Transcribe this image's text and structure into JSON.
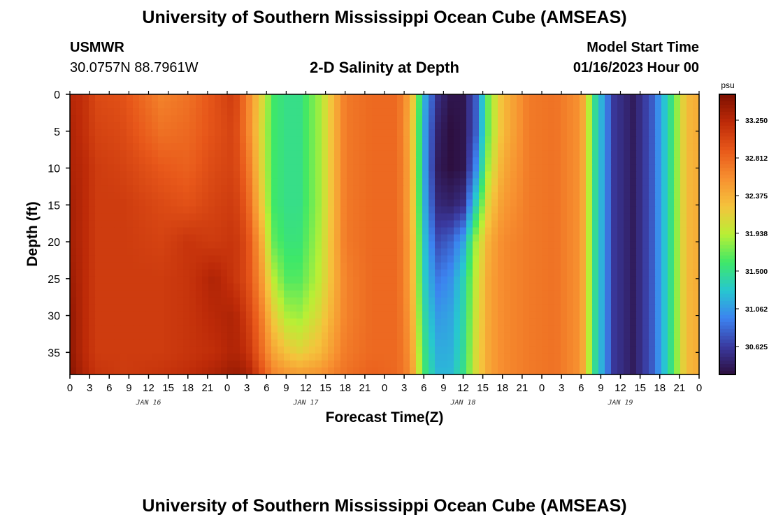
{
  "header": {
    "title": "University of Southern Mississippi Ocean Cube (AMSEAS)",
    "station_name": "USMWR",
    "station_coords": "30.0757N  88.7961W",
    "plot_title": "2-D Salinity at Depth",
    "model_start_label": "Model Start Time",
    "model_start_value": "01/16/2023 Hour 00"
  },
  "footer": {
    "title": "University of Southern Mississippi Ocean Cube (AMSEAS)"
  },
  "colors": {
    "colormap": [
      "#2d0f3f",
      "#3a3aa0",
      "#3c83f0",
      "#27c7d0",
      "#3ee868",
      "#b9ef35",
      "#f5c33c",
      "#f79030",
      "#e8581a",
      "#bd2a08",
      "#7d1000"
    ],
    "frame": "#000000"
  },
  "chart_data": {
    "type": "heatmap",
    "title": "2-D Salinity at Depth",
    "xlabel": "Forecast Time(Z)",
    "ylabel": "Depth (ft)",
    "x_range_hours": [
      0,
      96
    ],
    "y_range_ft": [
      0,
      38
    ],
    "y_reversed": true,
    "x_tick_labels": [
      "0",
      "3",
      "6",
      "9",
      "12",
      "15",
      "18",
      "21",
      "0",
      "3",
      "6",
      "9",
      "12",
      "15",
      "18",
      "21",
      "0",
      "3",
      "6",
      "9",
      "12",
      "15",
      "18",
      "21",
      "0",
      "3",
      "6",
      "9",
      "12",
      "15",
      "18",
      "21",
      "0"
    ],
    "y_ticks": [
      0,
      5,
      10,
      15,
      20,
      25,
      30,
      35
    ],
    "y_tick_labels": [
      "0",
      "5",
      "10",
      "15",
      "20",
      "25",
      "30",
      "35"
    ],
    "date_labels": [
      "JAN 16",
      "JAN 17",
      "JAN 18",
      "JAN 19"
    ],
    "colorbar": {
      "unit": "psu",
      "range": [
        30.3,
        33.55
      ],
      "tick_values": [
        33.25,
        32.812,
        32.375,
        31.938,
        31.5,
        31.062,
        30.625
      ],
      "tick_labels": [
        "33.250",
        "32.812",
        "32.375",
        "31.938",
        "31.500",
        "31.062",
        "30.625"
      ]
    },
    "depths_ft": [
      0,
      5,
      10,
      15,
      20,
      25,
      30,
      35,
      38
    ],
    "times_hr": [
      0,
      2,
      4,
      8,
      14,
      18,
      22,
      25,
      27,
      29,
      31,
      33,
      35,
      38,
      42,
      46,
      50,
      52,
      54,
      56,
      58,
      60,
      62,
      64,
      66,
      70,
      74,
      78,
      80,
      83,
      86,
      89,
      92,
      94,
      96
    ],
    "salinity_psu": [
      [
        33.25,
        33.2,
        33.0,
        32.95,
        32.65,
        32.75,
        32.95,
        33.1,
        32.7,
        32.2,
        31.6,
        31.5,
        31.5,
        31.85,
        32.7,
        32.8,
        32.8,
        32.4,
        31.2,
        30.55,
        30.35,
        30.35,
        30.8,
        31.8,
        32.3,
        32.7,
        32.75,
        32.55,
        31.5,
        30.6,
        30.4,
        30.8,
        31.6,
        32.3,
        32.4
      ],
      [
        33.3,
        33.2,
        33.05,
        33.0,
        32.75,
        32.8,
        32.95,
        33.05,
        32.7,
        32.15,
        31.6,
        31.5,
        31.5,
        31.85,
        32.7,
        32.8,
        32.8,
        32.35,
        31.15,
        30.45,
        30.3,
        30.35,
        30.8,
        31.8,
        32.3,
        32.7,
        32.75,
        32.55,
        31.5,
        30.6,
        30.4,
        30.8,
        31.6,
        32.3,
        32.4
      ],
      [
        33.3,
        33.25,
        33.1,
        33.05,
        32.9,
        32.85,
        33.0,
        33.05,
        32.8,
        32.2,
        31.6,
        31.5,
        31.5,
        31.85,
        32.7,
        32.8,
        32.8,
        32.4,
        31.15,
        30.4,
        30.3,
        30.35,
        31.0,
        31.95,
        32.4,
        32.7,
        32.75,
        32.55,
        31.5,
        30.6,
        30.4,
        30.8,
        31.6,
        32.3,
        32.4
      ],
      [
        33.35,
        33.25,
        33.1,
        33.1,
        33.0,
        32.95,
        33.05,
        33.1,
        32.9,
        32.3,
        31.6,
        31.5,
        31.5,
        31.85,
        32.7,
        32.8,
        32.8,
        32.4,
        31.2,
        30.5,
        30.45,
        30.55,
        31.4,
        32.2,
        32.5,
        32.7,
        32.75,
        32.55,
        31.5,
        30.6,
        30.4,
        30.8,
        31.6,
        32.3,
        32.4
      ],
      [
        33.35,
        33.25,
        33.1,
        33.1,
        33.05,
        33.15,
        33.1,
        33.15,
        33.0,
        32.5,
        31.7,
        31.55,
        31.55,
        31.9,
        32.7,
        32.8,
        32.8,
        32.45,
        31.3,
        30.7,
        30.8,
        31.1,
        31.9,
        32.4,
        32.6,
        32.7,
        32.75,
        32.55,
        31.5,
        30.6,
        30.4,
        30.8,
        31.6,
        32.3,
        32.4
      ],
      [
        33.4,
        33.25,
        33.1,
        33.1,
        33.1,
        33.15,
        33.3,
        33.15,
        33.0,
        32.6,
        31.95,
        31.65,
        31.65,
        31.95,
        32.65,
        32.8,
        32.8,
        32.45,
        31.35,
        30.9,
        31.0,
        31.35,
        32.0,
        32.45,
        32.6,
        32.7,
        32.75,
        32.55,
        31.5,
        30.6,
        30.4,
        30.8,
        31.6,
        32.3,
        32.4
      ],
      [
        33.45,
        33.25,
        33.1,
        33.1,
        33.1,
        33.15,
        33.25,
        33.3,
        33.1,
        32.75,
        32.2,
        31.9,
        31.85,
        32.1,
        32.65,
        32.8,
        32.8,
        32.5,
        31.45,
        31.05,
        31.1,
        31.4,
        32.05,
        32.45,
        32.6,
        32.7,
        32.75,
        32.55,
        31.5,
        30.6,
        30.4,
        30.8,
        31.6,
        32.3,
        32.4
      ],
      [
        33.45,
        33.25,
        33.1,
        33.1,
        33.1,
        33.15,
        33.2,
        33.3,
        33.2,
        32.85,
        32.45,
        32.25,
        32.15,
        32.3,
        32.7,
        32.8,
        32.8,
        32.55,
        31.55,
        31.15,
        31.15,
        31.45,
        32.1,
        32.45,
        32.6,
        32.7,
        32.75,
        32.55,
        31.5,
        30.6,
        30.4,
        30.8,
        31.6,
        32.3,
        32.4
      ],
      [
        33.5,
        33.3,
        33.15,
        33.1,
        33.15,
        33.2,
        33.3,
        33.4,
        33.35,
        33.0,
        32.65,
        32.55,
        32.5,
        32.55,
        32.75,
        32.85,
        32.8,
        32.6,
        31.6,
        31.2,
        31.2,
        31.5,
        32.1,
        32.45,
        32.6,
        32.7,
        32.75,
        32.55,
        31.5,
        30.6,
        30.4,
        30.8,
        31.6,
        32.3,
        32.4
      ]
    ]
  }
}
